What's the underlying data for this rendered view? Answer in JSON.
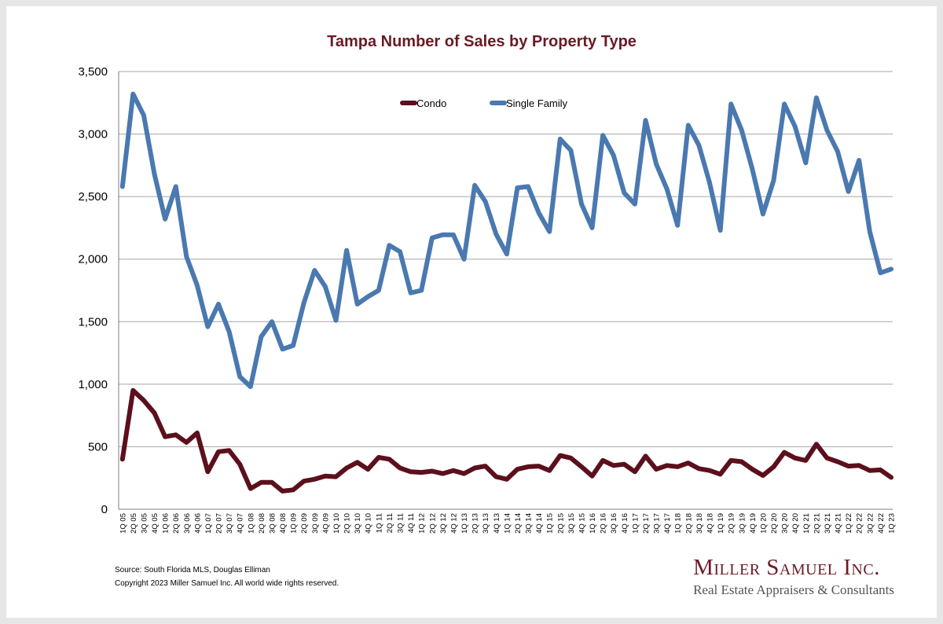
{
  "chart_data": {
    "type": "line",
    "title": "Tampa Number of Sales by Property Type",
    "ylim": [
      0,
      3500
    ],
    "y_ticks": [
      "0",
      "500",
      "1,000",
      "1,500",
      "2,000",
      "2,500",
      "3,000",
      "3,500"
    ],
    "y_tick_values": [
      0,
      500,
      1000,
      1500,
      2000,
      2500,
      3000,
      3500
    ],
    "grid": true,
    "legend_position": "top-center",
    "categories": [
      "1Q 05",
      "2Q 05",
      "3Q 05",
      "4Q 05",
      "1Q 06",
      "2Q 06",
      "3Q 06",
      "4Q 06",
      "1Q 07",
      "2Q 07",
      "3Q 07",
      "4Q 07",
      "1Q 08",
      "2Q 08",
      "3Q 08",
      "4Q 08",
      "1Q 09",
      "2Q 09",
      "3Q 09",
      "4Q 09",
      "1Q 10",
      "2Q 10",
      "3Q 10",
      "4Q 10",
      "1Q 11",
      "2Q 11",
      "3Q 11",
      "4Q 11",
      "1Q 12",
      "2Q 12",
      "3Q 12",
      "4Q 12",
      "1Q 13",
      "2Q 13",
      "3Q 13",
      "4Q 13",
      "1Q 14",
      "2Q 14",
      "3Q 14",
      "4Q 14",
      "1Q 15",
      "2Q 15",
      "3Q 15",
      "4Q 15",
      "1Q 16",
      "2Q 16",
      "3Q 16",
      "4Q 16",
      "1Q 17",
      "2Q 17",
      "3Q 17",
      "4Q 17",
      "1Q 18",
      "2Q 18",
      "3Q 18",
      "4Q 18",
      "1Q 19",
      "2Q 19",
      "3Q 19",
      "4Q 19",
      "1Q 20",
      "2Q 20",
      "3Q 20",
      "4Q 20",
      "1Q 21",
      "2Q 21",
      "3Q 21",
      "4Q 21",
      "1Q 22",
      "2Q 22",
      "3Q 22",
      "4Q 22",
      "1Q 23"
    ],
    "series": [
      {
        "name": "Condo",
        "color": "#5c0f1c",
        "values": [
          400,
          950,
          870,
          770,
          580,
          595,
          535,
          610,
          300,
          460,
          470,
          360,
          165,
          215,
          215,
          145,
          155,
          225,
          240,
          265,
          260,
          330,
          375,
          320,
          415,
          400,
          330,
          300,
          295,
          305,
          285,
          310,
          285,
          330,
          345,
          260,
          240,
          320,
          340,
          345,
          310,
          430,
          410,
          340,
          265,
          390,
          350,
          360,
          300,
          425,
          320,
          350,
          340,
          370,
          325,
          310,
          280,
          390,
          380,
          320,
          270,
          340,
          455,
          410,
          390,
          520,
          410,
          380,
          345,
          350,
          310,
          315,
          255
        ]
      },
      {
        "name": "Single Family",
        "color": "#4a79b0",
        "values": [
          2580,
          3320,
          3150,
          2680,
          2320,
          2580,
          2020,
          1790,
          1460,
          1640,
          1420,
          1060,
          980,
          1380,
          1500,
          1280,
          1310,
          1650,
          1910,
          1780,
          1510,
          2070,
          1640,
          1700,
          1750,
          2110,
          2060,
          1730,
          1750,
          2170,
          2195,
          2195,
          2000,
          2590,
          2460,
          2200,
          2040,
          2570,
          2580,
          2370,
          2220,
          2960,
          2870,
          2440,
          2250,
          2990,
          2830,
          2530,
          2440,
          3110,
          2760,
          2560,
          2270,
          3070,
          2910,
          2610,
          2230,
          3240,
          3030,
          2720,
          2360,
          2630,
          3240,
          3060,
          2770,
          3290,
          3030,
          2860,
          2540,
          2790,
          2220,
          1890,
          1920
        ]
      }
    ]
  },
  "source_line": "Source: South Florida MLS, Douglas Elliman",
  "copyright_line": "Copyright 2023 Miller Samuel Inc.  All world wide rights reserved.",
  "logo": {
    "name": "Miller Samuel Inc.",
    "tagline": "Real Estate Appraisers & Consultants"
  }
}
